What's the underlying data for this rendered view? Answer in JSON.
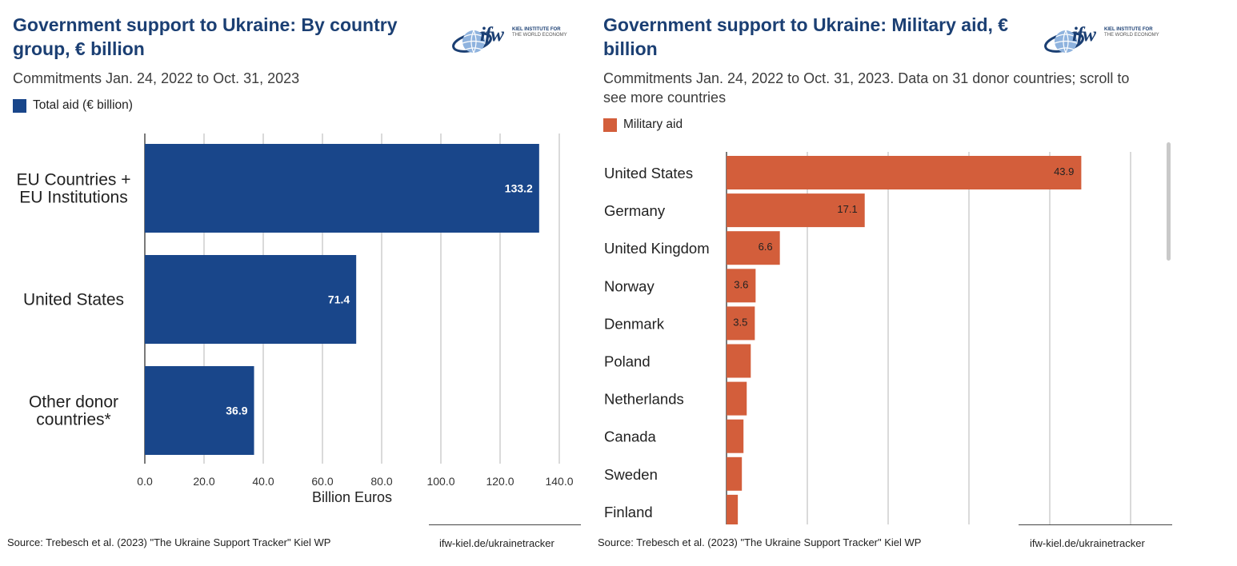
{
  "left": {
    "title_line1": "Government support to Ukraine: By country",
    "title_line2": "group, € billion",
    "subtitle": "Commitments Jan. 24, 2022 to Oct. 31, 2023",
    "logo": {
      "mark": "ifw",
      "org_line1": "KIEL INSTITUTE FOR",
      "org_line2": "THE WORLD ECONOMY"
    },
    "source": "Source: Trebesch et al. (2023) \"The Ukraine Support Tracker\" Kiel WP",
    "link": "ifw-kiel.de/ukrainetracker"
  },
  "right": {
    "title_line1": "Government support to Ukraine: Military aid, €",
    "title_line2": "billion",
    "subtitle_line1": "Commitments Jan. 24, 2022 to Oct. 31, 2023. Data on 31 donor countries; scroll to",
    "subtitle_line2": "see more countries",
    "logo": {
      "mark": "ifw",
      "org_line1": "KIEL INSTITUTE FOR",
      "org_line2": "THE WORLD ECONOMY"
    },
    "source": "Source: Trebesch et al. (2023) \"The Ukraine Support Tracker\" Kiel WP",
    "link": "ifw-kiel.de/ukrainetracker"
  },
  "colors": {
    "blue": "#19468a",
    "orange": "#d35e3b",
    "title": "#1b3f73"
  },
  "chart_data": [
    {
      "type": "bar",
      "orientation": "horizontal",
      "title": "Government support to Ukraine: By country group, € billion",
      "legend": "Total aid (€ billion)",
      "xlabel": "Billion Euros",
      "xlim": [
        0,
        140
      ],
      "ticks": [
        "0.0",
        "20.0",
        "40.0",
        "60.0",
        "80.0",
        "100.0",
        "120.0",
        "140.0"
      ],
      "categories": [
        [
          "EU Countries +",
          "EU Institutions"
        ],
        [
          "United States"
        ],
        [
          "Other donor",
          "countries*"
        ]
      ],
      "values": [
        133.2,
        71.4,
        36.9
      ],
      "labels": [
        "133.2",
        "71.4",
        "36.9"
      ],
      "grid": true
    },
    {
      "type": "bar",
      "orientation": "horizontal",
      "title": "Government support to Ukraine: Military aid, € billion",
      "legend": "Military aid",
      "xlim": [
        0,
        50
      ],
      "categories": [
        "United States",
        "Germany",
        "United Kingdom",
        "Norway",
        "Denmark",
        "Poland",
        "Netherlands",
        "Canada",
        "Sweden",
        "Finland"
      ],
      "values": [
        43.9,
        17.1,
        6.6,
        3.6,
        3.5,
        3.0,
        2.5,
        2.1,
        1.9,
        1.4
      ],
      "labels": [
        "43.9",
        "17.1",
        "6.6",
        "3.6",
        "3.5",
        "",
        "",
        "",
        "",
        ""
      ],
      "grid": true
    }
  ]
}
